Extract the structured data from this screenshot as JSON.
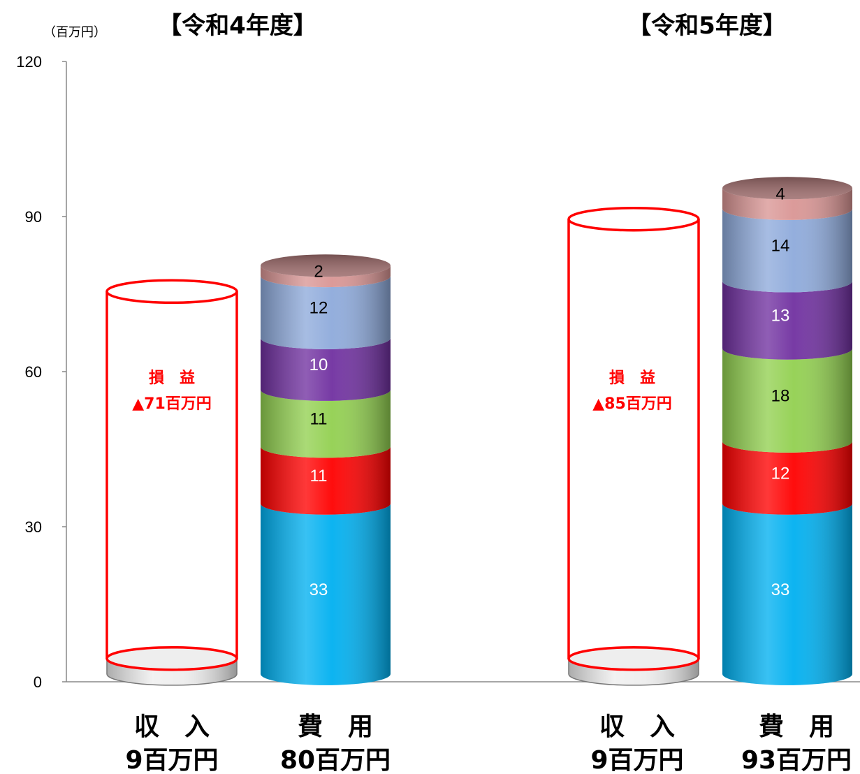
{
  "chart_data": {
    "type": "bar",
    "unit_label": "（百万円）",
    "ylim": [
      0,
      120
    ],
    "yticks": [
      "0",
      "30",
      "60",
      "90",
      "120"
    ],
    "panels": [
      {
        "title": "【令和4年度】",
        "income": {
          "category": "収　入",
          "total_label": "9百万円",
          "value": 9
        },
        "expense": {
          "category": "費　用",
          "total_label": "80百万円",
          "segments": [
            {
              "value": 33,
              "label": "33"
            },
            {
              "value": 11,
              "label": "11"
            },
            {
              "value": 11,
              "label": "11"
            },
            {
              "value": 10,
              "label": "10"
            },
            {
              "value": 12,
              "label": "12"
            },
            {
              "value": 2,
              "label": "2"
            }
          ]
        },
        "loss": {
          "line1": "損　益",
          "line2": "▲71百万円",
          "value": 71
        }
      },
      {
        "title": "【令和5年度】",
        "income": {
          "category": "収　入",
          "total_label": "9百万円",
          "value": 9
        },
        "expense": {
          "category": "費　用",
          "total_label": "93百万円",
          "segments": [
            {
              "value": 33,
              "label": "33"
            },
            {
              "value": 12,
              "label": "12"
            },
            {
              "value": 18,
              "label": "18"
            },
            {
              "value": 13,
              "label": "13"
            },
            {
              "value": 14,
              "label": "14"
            },
            {
              "value": 4,
              "label": "4"
            }
          ]
        },
        "loss": {
          "line1": "損　益",
          "line2": "▲85百万円",
          "value": 85
        }
      }
    ],
    "segment_colors": [
      "#00b0f0",
      "#ff0000",
      "#92d050",
      "#7030a0",
      "#8eaadb",
      "#d99594"
    ],
    "segment_label_colors": [
      "#ffffff",
      "#ffffff",
      "#000000",
      "#ffffff",
      "#000000",
      "#000000"
    ],
    "income_color": "#eeeeee",
    "loss_outline_color": "#ff0000",
    "grid": false,
    "legend": "none"
  }
}
